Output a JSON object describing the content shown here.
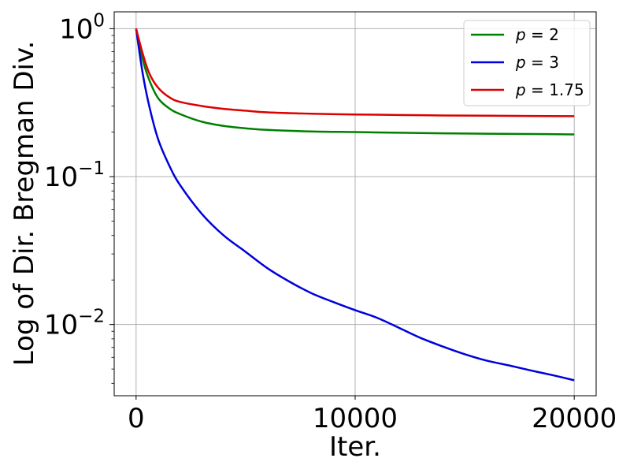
{
  "chart_data": {
    "type": "line",
    "xlabel": "Iter.",
    "ylabel": "Log of Dir. Bregman Div.",
    "xlim": [
      -1000,
      21000
    ],
    "ylim": [
      0.0033,
      1.3
    ],
    "yscale": "log",
    "grid": true,
    "legend_position": "top-right",
    "xticks": [
      {
        "value": 0,
        "label": "0"
      },
      {
        "value": 10000,
        "label": "10000"
      },
      {
        "value": 20000,
        "label": "20000"
      }
    ],
    "yticks": [
      {
        "value": 1,
        "base": "10",
        "exp": "0"
      },
      {
        "value": 0.1,
        "base": "10",
        "exp": "−1"
      },
      {
        "value": 0.01,
        "base": "10",
        "exp": "−2"
      }
    ],
    "series": [
      {
        "name": "p = 2",
        "legend_var": "p",
        "legend_val": "2",
        "color": "#008000",
        "x": [
          0,
          300,
          600,
          1000,
          1500,
          2000,
          3000,
          4000,
          5000,
          6000,
          8000,
          10000,
          12000,
          14000,
          16000,
          18000,
          20000
        ],
        "y": [
          1.0,
          0.62,
          0.45,
          0.34,
          0.29,
          0.265,
          0.235,
          0.22,
          0.212,
          0.207,
          0.202,
          0.2,
          0.198,
          0.196,
          0.195,
          0.194,
          0.193
        ]
      },
      {
        "name": "p = 3",
        "legend_var": "p",
        "legend_val": "3",
        "color": "#0000dd",
        "x": [
          0,
          300,
          600,
          1000,
          1500,
          2000,
          3000,
          4000,
          5000,
          6000,
          7000,
          8000,
          9000,
          10000,
          11000,
          12000,
          13000,
          14000,
          15000,
          16000,
          17000,
          18000,
          19000,
          20000
        ],
        "y": [
          1.0,
          0.5,
          0.3,
          0.18,
          0.12,
          0.088,
          0.056,
          0.04,
          0.031,
          0.024,
          0.0195,
          0.0163,
          0.0142,
          0.0125,
          0.0111,
          0.0095,
          0.0081,
          0.0071,
          0.0063,
          0.0057,
          0.0053,
          0.0049,
          0.00455,
          0.0042
        ]
      },
      {
        "name": "p = 1.75",
        "legend_var": "p",
        "legend_val": "1.75",
        "color": "#dd0000",
        "x": [
          0,
          300,
          600,
          1000,
          1500,
          2000,
          3000,
          4000,
          5000,
          6000,
          8000,
          10000,
          12000,
          14000,
          16000,
          18000,
          20000
        ],
        "y": [
          1.0,
          0.68,
          0.5,
          0.4,
          0.345,
          0.32,
          0.3,
          0.287,
          0.279,
          0.272,
          0.266,
          0.263,
          0.261,
          0.259,
          0.258,
          0.257,
          0.256
        ]
      }
    ]
  }
}
